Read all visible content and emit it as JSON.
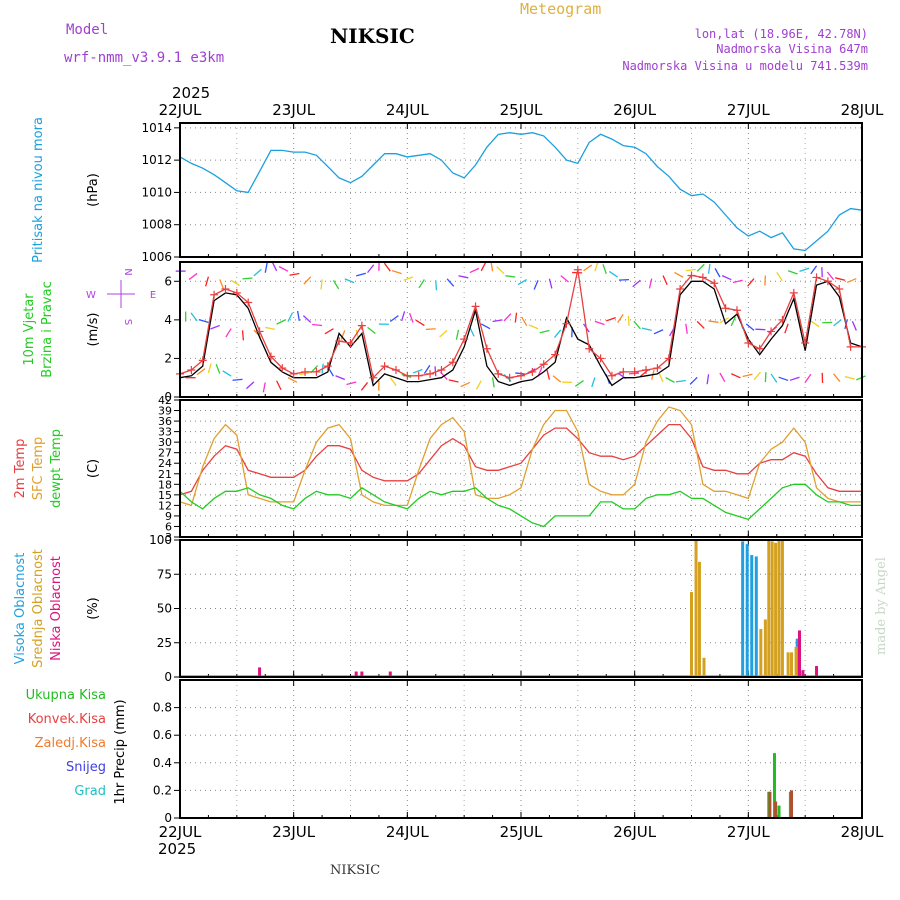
{
  "header": {
    "model_label": "Model",
    "model_name": "wrf-nmm_v3.9.1  e3km",
    "station": "NIKSIC",
    "title": "Meteogram",
    "lonlat": "lon,lat (18.96E, 42.78N)",
    "elevation": "Nadmorska Visina 647m",
    "model_elevation": "Nadmorska Visina u modelu 741.539m",
    "year_top": "2025",
    "year_bottom": "2025",
    "footer_station": "NIKSIC",
    "credit": "made by Angel"
  },
  "colors": {
    "pressure": "#1aa0e0",
    "wind_label": "#22cc22",
    "temp2m": "#e84040",
    "sfc": "#e0a030",
    "dew": "#22cc22",
    "high_cloud": "#20a0e0",
    "mid_cloud": "#d4a020",
    "low_cloud": "#e01080",
    "total_precip": "#22bb22",
    "conv_precip": "#e84040",
    "frozen": "#f07a30",
    "snow": "#4040e0",
    "graupel": "#20c0c0",
    "compass": "#b040e0",
    "grid": "#888888",
    "header_purple": "#a040d0",
    "header_gold": "#e0b040"
  },
  "chart_data": [
    {
      "type": "line",
      "id": "pressure",
      "ylabel_lines": [
        "Pritisak na nivou mora"
      ],
      "unit": "(hPa)",
      "ylim": [
        1006,
        1014.3
      ],
      "yticks": [
        1006,
        1008,
        1010,
        1012,
        1014
      ],
      "x_days": [
        "22JUL",
        "23JUL",
        "24JUL",
        "25JUL",
        "26JUL",
        "27JUL",
        "28JUL"
      ],
      "series": [
        {
          "name": "MSLP",
          "x": [
            0,
            0.1,
            0.2,
            0.3,
            0.4,
            0.5,
            0.6,
            0.7,
            0.8,
            0.9,
            1.0,
            1.1,
            1.2,
            1.3,
            1.4,
            1.5,
            1.6,
            1.7,
            1.8,
            1.9,
            2.0,
            2.1,
            2.2,
            2.3,
            2.4,
            2.5,
            2.6,
            2.7,
            2.8,
            2.9,
            3.0,
            3.1,
            3.2,
            3.3,
            3.4,
            3.5,
            3.6,
            3.7,
            3.8,
            3.9,
            4.0,
            4.1,
            4.2,
            4.3,
            4.4,
            4.5,
            4.6,
            4.7,
            4.8,
            4.9,
            5.0,
            5.1,
            5.2,
            5.3,
            5.4,
            5.5,
            5.6,
            5.7,
            5.8,
            5.9,
            6.0
          ],
          "y": [
            1012.2,
            1011.8,
            1011.5,
            1011.1,
            1010.6,
            1010.1,
            1010.0,
            1011.3,
            1012.6,
            1012.6,
            1012.5,
            1012.5,
            1012.3,
            1011.6,
            1010.9,
            1010.6,
            1011.0,
            1011.7,
            1012.4,
            1012.4,
            1012.2,
            1012.3,
            1012.4,
            1012.0,
            1011.2,
            1010.9,
            1011.7,
            1012.8,
            1013.6,
            1013.7,
            1013.6,
            1013.7,
            1013.5,
            1012.8,
            1012.0,
            1011.8,
            1013.1,
            1013.6,
            1013.3,
            1012.9,
            1012.8,
            1012.4,
            1011.6,
            1011.0,
            1010.2,
            1009.8,
            1009.9,
            1009.4,
            1008.6,
            1007.8,
            1007.3,
            1007.6,
            1007.2,
            1007.5,
            1006.5,
            1006.4,
            1007.0,
            1007.6,
            1008.6,
            1009.0,
            1008.9
          ]
        }
      ]
    },
    {
      "type": "line",
      "id": "wind",
      "ylabel_lines": [
        "10m Vjetar",
        "Brzina i Pravac"
      ],
      "unit": "(m/s)",
      "ylim": [
        0,
        7
      ],
      "yticks": [
        0,
        2,
        4,
        6
      ],
      "compass_labels": {
        "north": "N",
        "south": "S",
        "west": "W",
        "east": "E"
      },
      "series": [
        {
          "name": "speed_black",
          "x": [
            0,
            0.1,
            0.2,
            0.3,
            0.4,
            0.5,
            0.6,
            0.7,
            0.8,
            0.9,
            1.0,
            1.1,
            1.2,
            1.3,
            1.4,
            1.5,
            1.6,
            1.7,
            1.8,
            1.9,
            2.0,
            2.1,
            2.2,
            2.3,
            2.4,
            2.5,
            2.6,
            2.7,
            2.8,
            2.9,
            3.0,
            3.1,
            3.2,
            3.3,
            3.4,
            3.5,
            3.6,
            3.7,
            3.8,
            3.9,
            4.0,
            4.1,
            4.2,
            4.3,
            4.4,
            4.5,
            4.6,
            4.7,
            4.8,
            4.9,
            5.0,
            5.1,
            5.2,
            5.3,
            5.4,
            5.5,
            5.6,
            5.7,
            5.8,
            5.9,
            6.0
          ],
          "y": [
            1.0,
            1.1,
            1.6,
            5.0,
            5.4,
            5.3,
            4.6,
            3.1,
            1.8,
            1.3,
            1.0,
            1.0,
            1.0,
            1.3,
            3.3,
            2.6,
            3.3,
            0.6,
            1.2,
            1.0,
            0.8,
            0.8,
            0.9,
            1.0,
            1.4,
            2.6,
            4.5,
            1.6,
            0.8,
            0.6,
            0.8,
            0.9,
            1.3,
            1.8,
            4.1,
            3.0,
            2.7,
            1.6,
            0.6,
            1.0,
            1.0,
            1.1,
            1.2,
            1.6,
            5.3,
            6.0,
            6.0,
            5.6,
            3.8,
            4.3,
            3.0,
            2.2,
            3.0,
            3.7,
            5.1,
            2.4,
            5.8,
            6.0,
            5.2,
            2.8,
            2.6
          ]
        },
        {
          "name": "gust_red",
          "x": [
            0,
            0.1,
            0.2,
            0.3,
            0.4,
            0.5,
            0.6,
            0.7,
            0.8,
            0.9,
            1.0,
            1.1,
            1.2,
            1.3,
            1.4,
            1.5,
            1.6,
            1.7,
            1.8,
            1.9,
            2.0,
            2.1,
            2.2,
            2.3,
            2.4,
            2.5,
            2.6,
            2.7,
            2.8,
            2.9,
            3.0,
            3.1,
            3.2,
            3.3,
            3.4,
            3.5,
            3.6,
            3.7,
            3.8,
            3.9,
            4.0,
            4.1,
            4.2,
            4.3,
            4.4,
            4.5,
            4.6,
            4.7,
            4.8,
            4.9,
            5.0,
            5.1,
            5.2,
            5.3,
            5.4,
            5.5,
            5.6,
            5.7,
            5.8,
            5.9,
            6.0
          ],
          "y": [
            1.2,
            1.4,
            1.9,
            5.3,
            5.6,
            5.4,
            4.9,
            3.4,
            2.1,
            1.5,
            1.2,
            1.3,
            1.3,
            1.6,
            2.9,
            2.8,
            3.7,
            1.0,
            1.6,
            1.4,
            1.1,
            1.1,
            1.2,
            1.4,
            1.8,
            3.0,
            4.7,
            2.5,
            1.2,
            1.0,
            1.1,
            1.3,
            1.7,
            2.2,
            3.8,
            6.6,
            2.5,
            2.0,
            1.1,
            1.3,
            1.3,
            1.4,
            1.5,
            2.0,
            5.6,
            6.3,
            6.2,
            5.9,
            4.6,
            4.5,
            2.8,
            2.5,
            3.4,
            4.0,
            5.4,
            2.8,
            6.2,
            6.0,
            5.6,
            2.6,
            2.6
          ]
        }
      ]
    },
    {
      "type": "line",
      "id": "temperature",
      "ylabel_lines": [
        "2m Temp",
        "SFC Temp",
        "dewpt Temp"
      ],
      "unit": "(C)",
      "ylim": [
        3,
        42
      ],
      "yticks": [
        3,
        6,
        9,
        12,
        15,
        18,
        21,
        24,
        27,
        30,
        33,
        36,
        39,
        42
      ],
      "series": [
        {
          "name": "2m Temp",
          "x": [
            0,
            0.1,
            0.2,
            0.3,
            0.4,
            0.5,
            0.6,
            0.7,
            0.8,
            0.9,
            1.0,
            1.1,
            1.2,
            1.3,
            1.4,
            1.5,
            1.6,
            1.7,
            1.8,
            1.9,
            2.0,
            2.1,
            2.2,
            2.3,
            2.4,
            2.5,
            2.6,
            2.7,
            2.8,
            2.9,
            3.0,
            3.1,
            3.2,
            3.3,
            3.4,
            3.5,
            3.6,
            3.7,
            3.8,
            3.9,
            4.0,
            4.1,
            4.2,
            4.3,
            4.4,
            4.5,
            4.6,
            4.7,
            4.8,
            4.9,
            5.0,
            5.1,
            5.2,
            5.3,
            5.4,
            5.5,
            5.6,
            5.7,
            5.8,
            5.9,
            6.0
          ],
          "y": [
            15,
            16,
            22,
            26,
            29,
            28,
            22,
            21,
            20,
            20,
            20,
            22,
            26,
            29,
            29,
            28,
            22,
            20,
            19,
            19,
            19,
            21,
            25,
            29,
            31,
            29,
            23,
            22,
            22,
            23,
            24,
            28,
            32,
            34,
            34,
            31,
            27,
            26,
            26,
            25,
            26,
            29,
            32,
            35,
            35,
            31,
            23,
            22,
            22,
            21,
            21,
            24,
            25,
            25,
            27,
            26,
            21,
            17,
            16,
            16,
            16
          ]
        },
        {
          "name": "SFC Temp",
          "x": [
            0,
            0.1,
            0.2,
            0.3,
            0.4,
            0.5,
            0.6,
            0.7,
            0.8,
            0.9,
            1.0,
            1.1,
            1.2,
            1.3,
            1.4,
            1.5,
            1.6,
            1.7,
            1.8,
            1.9,
            2.0,
            2.1,
            2.2,
            2.3,
            2.4,
            2.5,
            2.6,
            2.7,
            2.8,
            2.9,
            3.0,
            3.1,
            3.2,
            3.3,
            3.4,
            3.5,
            3.6,
            3.7,
            3.8,
            3.9,
            4.0,
            4.1,
            4.2,
            4.3,
            4.4,
            4.5,
            4.6,
            4.7,
            4.8,
            4.9,
            5.0,
            5.1,
            5.2,
            5.3,
            5.4,
            5.5,
            5.6,
            5.7,
            5.8,
            5.9,
            6.0
          ],
          "y": [
            13,
            12,
            23,
            31,
            35,
            32,
            15,
            14,
            13,
            13,
            13,
            22,
            30,
            34,
            35,
            31,
            15,
            13,
            12,
            12,
            12,
            22,
            31,
            35,
            37,
            33,
            15,
            14,
            14,
            15,
            17,
            28,
            35,
            39,
            39,
            33,
            18,
            16,
            15,
            15,
            18,
            30,
            36,
            40,
            39,
            35,
            18,
            16,
            16,
            15,
            14,
            24,
            28,
            30,
            34,
            30,
            17,
            14,
            13,
            13,
            13
          ]
        },
        {
          "name": "dewpt Temp",
          "x": [
            0,
            0.1,
            0.2,
            0.3,
            0.4,
            0.5,
            0.6,
            0.7,
            0.8,
            0.9,
            1.0,
            1.1,
            1.2,
            1.3,
            1.4,
            1.5,
            1.6,
            1.7,
            1.8,
            1.9,
            2.0,
            2.1,
            2.2,
            2.3,
            2.4,
            2.5,
            2.6,
            2.7,
            2.8,
            2.9,
            3.0,
            3.1,
            3.2,
            3.3,
            3.4,
            3.5,
            3.6,
            3.7,
            3.8,
            3.9,
            4.0,
            4.1,
            4.2,
            4.3,
            4.4,
            4.5,
            4.6,
            4.7,
            4.8,
            4.9,
            5.0,
            5.1,
            5.2,
            5.3,
            5.4,
            5.5,
            5.6,
            5.7,
            5.8,
            5.9,
            6.0
          ],
          "y": [
            16,
            13,
            11,
            14,
            16,
            16,
            17,
            15,
            14,
            12,
            11,
            14,
            16,
            15,
            15,
            14,
            17,
            15,
            13,
            12,
            11,
            14,
            16,
            15,
            16,
            16,
            17,
            14,
            12,
            11,
            9,
            7,
            6,
            9,
            9,
            9,
            9,
            13,
            13,
            11,
            11,
            14,
            15,
            15,
            16,
            14,
            14,
            12,
            10,
            9,
            8,
            11,
            14,
            17,
            18,
            18,
            15,
            13,
            13,
            12,
            12
          ]
        }
      ]
    },
    {
      "type": "bar",
      "id": "cloud",
      "ylabel_lines": [
        "Visoka Oblacnost",
        "Srednja Oblacnost",
        "Niska Oblacnost"
      ],
      "unit": "(%)",
      "ylim": [
        0,
        100
      ],
      "yticks": [
        0,
        25,
        50,
        75,
        100
      ],
      "series": [
        {
          "name": "Visoka Oblacnost",
          "x": [
            4.95,
            4.99,
            5.03,
            5.07,
            5.43,
            5.45
          ],
          "values": [
            99,
            97,
            89,
            88,
            28,
            31
          ]
        },
        {
          "name": "Srednja Oblacnost",
          "x": [
            4.5,
            4.54,
            4.57,
            4.61,
            5.11,
            5.15,
            5.18,
            5.21,
            5.24,
            5.27,
            5.3,
            5.35,
            5.38,
            5.42
          ],
          "values": [
            62,
            100,
            84,
            14,
            35,
            42,
            100,
            99,
            98,
            100,
            100,
            18,
            18,
            22
          ]
        },
        {
          "name": "Niska Oblacnost",
          "x": [
            0.7,
            1.55,
            1.6,
            1.85,
            5.45,
            5.48,
            5.6
          ],
          "values": [
            7,
            4,
            4,
            4,
            34,
            5,
            8
          ]
        }
      ]
    },
    {
      "type": "bar",
      "id": "precip",
      "ylabel_lines": [
        "Ukupna Kisa",
        "Konvek.Kisa",
        "Zaledj.Kisa",
        "Snijeg",
        "Grad"
      ],
      "unit": "1hr Precip (mm)",
      "ylim": [
        0,
        1.0
      ],
      "yticks": [
        0,
        0.2,
        0.4,
        0.6,
        0.8
      ],
      "series": [
        {
          "name": "Ukupna Kisa",
          "x": [
            5.18,
            5.23,
            5.27,
            5.37
          ],
          "values": [
            0.19,
            0.47,
            0.09,
            0.19
          ]
        },
        {
          "name": "Konvek.Kisa",
          "x": [
            5.19,
            5.24,
            5.38
          ],
          "values": [
            0.19,
            0.12,
            0.2
          ]
        }
      ]
    }
  ]
}
